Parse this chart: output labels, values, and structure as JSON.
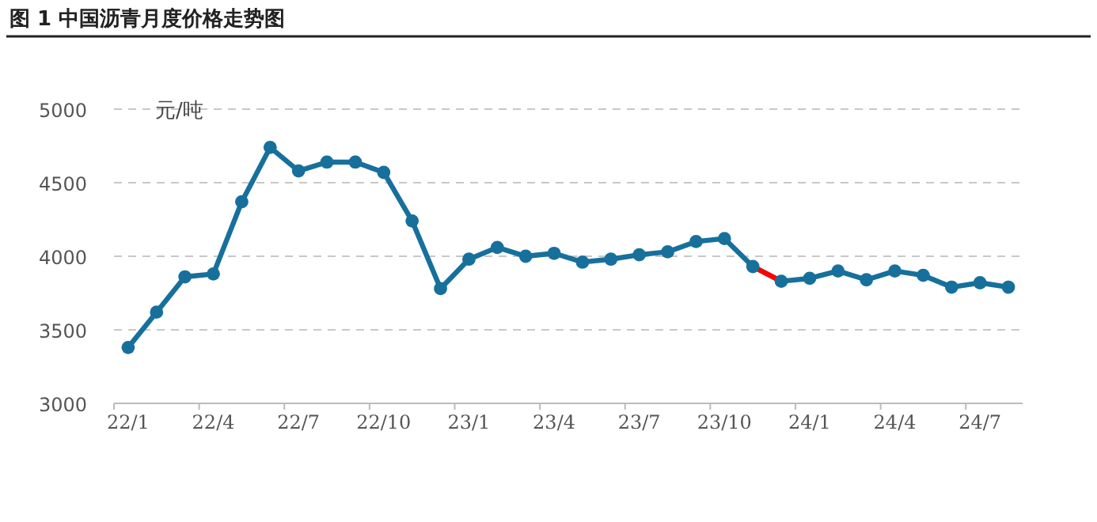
{
  "chart_data": {
    "type": "line",
    "title": "图 1  中国沥青月度价格走势图",
    "ylabel": "元/吨",
    "categories": [
      "22/1",
      null,
      null,
      "22/4",
      null,
      null,
      "22/7",
      null,
      null,
      "22/10",
      null,
      null,
      "23/1",
      null,
      null,
      "23/4",
      null,
      null,
      "23/7",
      null,
      null,
      "23/10",
      null,
      null,
      "24/1",
      null,
      null,
      "24/4",
      null,
      null,
      "24/7",
      null
    ],
    "series": [
      {
        "color": "#17709c",
        "marker": "circle",
        "values": [
          3380,
          3620,
          3860,
          3880,
          4370,
          4740,
          4580,
          4640,
          4640,
          4570,
          4240,
          3780,
          3980,
          4060,
          4000,
          4020,
          3960,
          3980,
          4010,
          4030,
          4100,
          4120,
          3930,
          3830,
          3850,
          3900,
          3840,
          3900,
          3870,
          3790,
          3820,
          3790
        ]
      },
      {
        "color": "#ff0000",
        "marker": "none",
        "values": [
          null,
          null,
          null,
          null,
          null,
          null,
          null,
          null,
          null,
          null,
          null,
          null,
          null,
          null,
          null,
          null,
          null,
          null,
          null,
          null,
          null,
          null,
          3930,
          3830,
          null,
          null,
          null,
          null,
          null,
          null,
          null,
          null
        ]
      }
    ],
    "ylim": [
      3000,
      5000
    ],
    "yticks": [
      3000,
      3500,
      4000,
      4500,
      5000
    ],
    "grid": "y",
    "line_style": "solid"
  }
}
